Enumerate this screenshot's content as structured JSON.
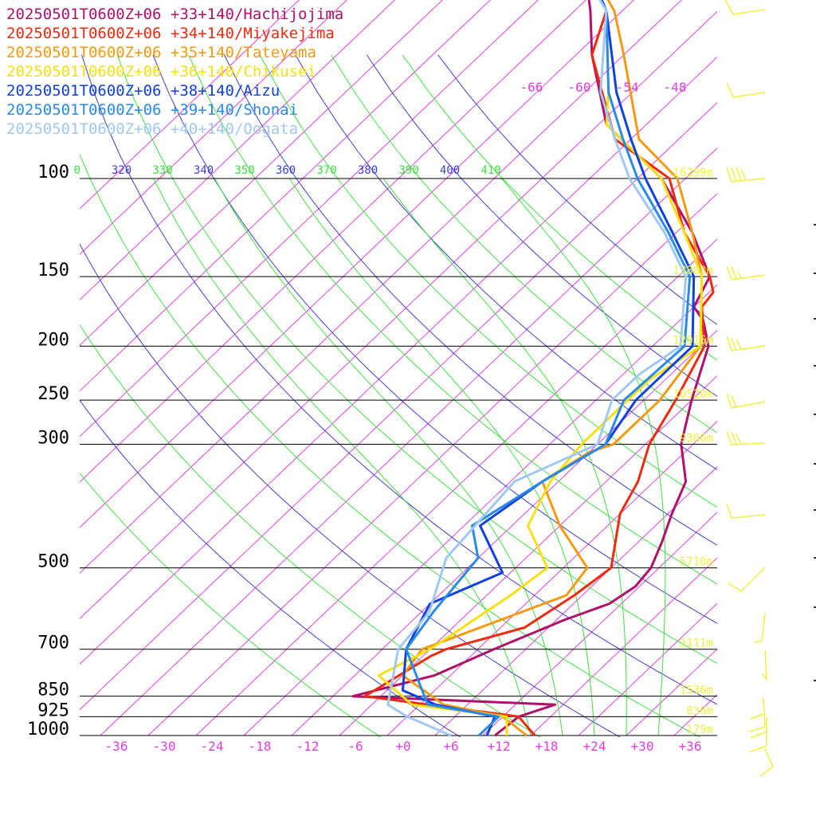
{
  "chart_data": {
    "type": "line",
    "title": "",
    "xlabel": "",
    "ylabel": "",
    "x_axis": {
      "ticks": [
        -36,
        -30,
        -24,
        -18,
        -12,
        -6,
        0,
        6,
        12,
        18,
        24,
        30,
        36
      ],
      "tick_labels": [
        "-36",
        "-30",
        "-24",
        "-18",
        "-12",
        "-6",
        "+0",
        "+6",
        "+12",
        "+18",
        "+24",
        "+30",
        "+36"
      ],
      "xlim": [
        -40,
        40
      ]
    },
    "y_axis": {
      "scale": "log",
      "ticks": [
        100,
        150,
        200,
        250,
        300,
        500,
        700,
        850,
        925,
        1000
      ],
      "tick_labels": [
        "100",
        "150",
        "200",
        "250",
        "300",
        "500",
        "700",
        "850",
        "925",
        "1000"
      ],
      "ylim": [
        1000,
        100
      ]
    },
    "upper_temp_labels": [
      "-66",
      "-60",
      "-54",
      "-48"
    ],
    "theta_labels": [
      {
        "text": "0",
        "color": "#40e040"
      },
      {
        "text": "320",
        "color": "#4040d0"
      },
      {
        "text": "330",
        "color": "#40e040"
      },
      {
        "text": "340",
        "color": "#4040d0"
      },
      {
        "text": "350",
        "color": "#40e040"
      },
      {
        "text": "360",
        "color": "#4040d0"
      },
      {
        "text": "370",
        "color": "#40e040"
      },
      {
        "text": "380",
        "color": "#4040d0"
      },
      {
        "text": "390",
        "color": "#40e040"
      },
      {
        "text": "400",
        "color": "#4040d0"
      },
      {
        "text": "410",
        "color": "#40e040"
      }
    ],
    "height_labels": [
      {
        "p": 100,
        "text": "16299m"
      },
      {
        "p": 150,
        "text": "13803m"
      },
      {
        "p": 200,
        "text": "12015m"
      },
      {
        "p": 250,
        "text": "10520m"
      },
      {
        "p": 300,
        "text": "9366m"
      },
      {
        "p": 500,
        "text": "5710m"
      },
      {
        "p": 700,
        "text": "3111m"
      },
      {
        "p": 850,
        "text": "1536m"
      },
      {
        "p": 925,
        "text": "836m"
      },
      {
        "p": 1000,
        "text": "179m"
      }
    ],
    "colors": {
      "isobar": "#000000",
      "isotherm": "#e040e0",
      "dry_adiabat": "#4040d0",
      "moist_adiabat": "#40e040",
      "wind_barb": "#f0f040"
    },
    "series": [
      {
        "name": "20250501T0600Z+06 +33+140/Hachijojima",
        "color": "#b0106a",
        "points": [
          {
            "p": 1000,
            "t": 11.5
          },
          {
            "p": 925,
            "t": 12.0
          },
          {
            "p": 880,
            "t": 15.0
          },
          {
            "p": 850,
            "t": -11.5
          },
          {
            "p": 780,
            "t": -4.0
          },
          {
            "p": 700,
            "t": 0.0
          },
          {
            "p": 620,
            "t": 5.0
          },
          {
            "p": 580,
            "t": 8.5
          },
          {
            "p": 540,
            "t": 9.5
          },
          {
            "p": 500,
            "t": 9.0
          },
          {
            "p": 450,
            "t": 7.0
          },
          {
            "p": 400,
            "t": 4.5
          },
          {
            "p": 350,
            "t": 2.0
          },
          {
            "p": 300,
            "t": -3.5
          },
          {
            "p": 250,
            "t": -8.0
          },
          {
            "p": 200,
            "t": -13.0
          },
          {
            "p": 180,
            "t": -17.0
          },
          {
            "p": 170,
            "t": -20.0
          },
          {
            "p": 150,
            "t": -22.0
          },
          {
            "p": 125,
            "t": -30.0
          },
          {
            "p": 100,
            "t": -41.0
          },
          {
            "p": 80,
            "t": -55.0
          },
          {
            "p": 60,
            "t": -66.0
          },
          {
            "p": 50,
            "t": -72.0
          },
          {
            "p": 40,
            "t": -80.0
          }
        ]
      },
      {
        "name": "20250501T0600Z+06 +34+140/Miyakejima",
        "color": "#f02a10",
        "points": [
          {
            "p": 1000,
            "t": 16.5
          },
          {
            "p": 925,
            "t": 12.0
          },
          {
            "p": 850,
            "t": -10.0
          },
          {
            "p": 720,
            "t": -7.0
          },
          {
            "p": 700,
            "t": -6.0
          },
          {
            "p": 640,
            "t": 1.0
          },
          {
            "p": 560,
            "t": 3.0
          },
          {
            "p": 500,
            "t": 4.0
          },
          {
            "p": 400,
            "t": -2.0
          },
          {
            "p": 350,
            "t": -4.0
          },
          {
            "p": 300,
            "t": -7.5
          },
          {
            "p": 250,
            "t": -10.0
          },
          {
            "p": 200,
            "t": -13.5
          },
          {
            "p": 170,
            "t": -19.0
          },
          {
            "p": 160,
            "t": -19.5
          },
          {
            "p": 150,
            "t": -22.0
          },
          {
            "p": 125,
            "t": -31.0
          },
          {
            "p": 100,
            "t": -40.0
          },
          {
            "p": 85,
            "t": -52.0
          },
          {
            "p": 60,
            "t": -66.0
          },
          {
            "p": 50,
            "t": -70.0
          },
          {
            "p": 40,
            "t": -80.0
          }
        ]
      },
      {
        "name": "20250501T0600Z+06 +35+140/Tateyama",
        "color": "#f49a10",
        "points": [
          {
            "p": 1000,
            "t": 15.5
          },
          {
            "p": 925,
            "t": 10.0
          },
          {
            "p": 880,
            "t": 1.0
          },
          {
            "p": 780,
            "t": -8.0
          },
          {
            "p": 700,
            "t": -9.0
          },
          {
            "p": 560,
            "t": 2.0
          },
          {
            "p": 500,
            "t": 1.0
          },
          {
            "p": 420,
            "t": -8.0
          },
          {
            "p": 350,
            "t": -16.0
          },
          {
            "p": 310,
            "t": -14.0
          },
          {
            "p": 300,
            "t": -12.0
          },
          {
            "p": 250,
            "t": -12.0
          },
          {
            "p": 200,
            "t": -14.0
          },
          {
            "p": 150,
            "t": -23.0
          },
          {
            "p": 125,
            "t": -30.0
          },
          {
            "p": 100,
            "t": -39.0
          },
          {
            "p": 85,
            "t": -49.0
          },
          {
            "p": 60,
            "t": -62.0
          },
          {
            "p": 50,
            "t": -69.0
          },
          {
            "p": 40,
            "t": -80.0
          }
        ]
      },
      {
        "name": "20250501T0600Z+06 +36+140/Chikusei",
        "color": "#f4e014",
        "points": [
          {
            "p": 1000,
            "t": 13.0
          },
          {
            "p": 925,
            "t": 10.5
          },
          {
            "p": 880,
            "t": -3.0
          },
          {
            "p": 780,
            "t": -11.0
          },
          {
            "p": 700,
            "t": -8.0
          },
          {
            "p": 560,
            "t": -5.0
          },
          {
            "p": 500,
            "t": -4.0
          },
          {
            "p": 420,
            "t": -12.0
          },
          {
            "p": 350,
            "t": -15.0
          },
          {
            "p": 300,
            "t": -16.0
          },
          {
            "p": 230,
            "t": -16.0
          },
          {
            "p": 200,
            "t": -14.0
          },
          {
            "p": 150,
            "t": -23.0
          },
          {
            "p": 125,
            "t": -31.0
          },
          {
            "p": 100,
            "t": -41.0
          },
          {
            "p": 80,
            "t": -55.0
          },
          {
            "p": 70,
            "t": -59.0
          },
          {
            "p": 50,
            "t": -70.0
          },
          {
            "p": 40,
            "t": -80.0
          }
        ]
      },
      {
        "name": "20250501T0600Z+06 +38+140/Aizu",
        "color": "#1040e0",
        "points": [
          {
            "p": 1000,
            "t": 10.5
          },
          {
            "p": 925,
            "t": 9.0
          },
          {
            "p": 880,
            "t": 0.0
          },
          {
            "p": 830,
            "t": -6.0
          },
          {
            "p": 700,
            "t": -11.0
          },
          {
            "p": 580,
            "t": -14.0
          },
          {
            "p": 510,
            "t": -9.0
          },
          {
            "p": 420,
            "t": -18.0
          },
          {
            "p": 350,
            "t": -16.0
          },
          {
            "p": 300,
            "t": -13.0
          },
          {
            "p": 250,
            "t": -15.0
          },
          {
            "p": 200,
            "t": -15.0
          },
          {
            "p": 150,
            "t": -24.0
          },
          {
            "p": 125,
            "t": -32.5
          },
          {
            "p": 100,
            "t": -43.0
          },
          {
            "p": 85,
            "t": -50.0
          },
          {
            "p": 70,
            "t": -58.0
          },
          {
            "p": 50,
            "t": -70.0
          },
          {
            "p": 40,
            "t": -80.0
          }
        ]
      },
      {
        "name": "20250501T0600Z+06 +39+140/Shonai",
        "color": "#2a8ae8",
        "points": [
          {
            "p": 1000,
            "t": 9.5
          },
          {
            "p": 925,
            "t": 9.5
          },
          {
            "p": 880,
            "t": -1.0
          },
          {
            "p": 700,
            "t": -11.0
          },
          {
            "p": 600,
            "t": -12.5
          },
          {
            "p": 480,
            "t": -14.0
          },
          {
            "p": 420,
            "t": -19.0
          },
          {
            "p": 350,
            "t": -16.0
          },
          {
            "p": 300,
            "t": -13.0
          },
          {
            "p": 250,
            "t": -16.5
          },
          {
            "p": 200,
            "t": -16.0
          },
          {
            "p": 150,
            "t": -24.5
          },
          {
            "p": 125,
            "t": -33.0
          },
          {
            "p": 100,
            "t": -44.0
          },
          {
            "p": 85,
            "t": -51.0
          },
          {
            "p": 70,
            "t": -59.0
          },
          {
            "p": 50,
            "t": -70.0
          },
          {
            "p": 40,
            "t": -81.0
          }
        ]
      },
      {
        "name": "20250501T0600Z+06 +40+140/Oogata",
        "color": "#a0c8f4",
        "points": [
          {
            "p": 1000,
            "t": 6.0
          },
          {
            "p": 925,
            "t": -2.0
          },
          {
            "p": 880,
            "t": -6.0
          },
          {
            "p": 700,
            "t": -12.0
          },
          {
            "p": 600,
            "t": -13.0
          },
          {
            "p": 480,
            "t": -18.0
          },
          {
            "p": 350,
            "t": -19.5
          },
          {
            "p": 300,
            "t": -14.0
          },
          {
            "p": 250,
            "t": -18.0
          },
          {
            "p": 225,
            "t": -18.0
          },
          {
            "p": 200,
            "t": -16.5
          },
          {
            "p": 150,
            "t": -25.0
          },
          {
            "p": 125,
            "t": -33.5
          },
          {
            "p": 100,
            "t": -45.0
          },
          {
            "p": 85,
            "t": -52.0
          },
          {
            "p": 70,
            "t": -60.0
          },
          {
            "p": 50,
            "t": -70.0
          },
          {
            "p": 40,
            "t": -81.0
          }
        ]
      }
    ]
  }
}
